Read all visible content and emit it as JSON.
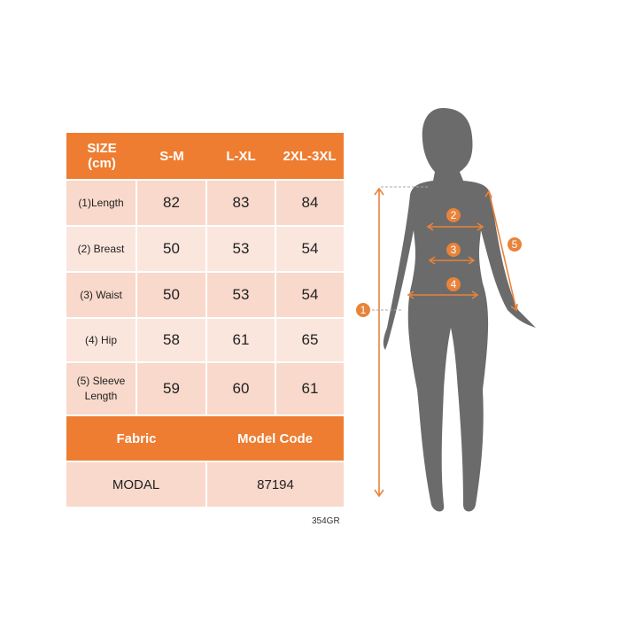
{
  "table": {
    "header": [
      "SIZE\n(cm)",
      "S-M",
      "L-XL",
      "2XL-3XL"
    ],
    "header_line1": "SIZE",
    "header_line2": "(cm)",
    "rows": [
      {
        "label": "(1)Length",
        "values": [
          "82",
          "83",
          "84"
        ]
      },
      {
        "label": "(2) Breast",
        "values": [
          "50",
          "53",
          "54"
        ]
      },
      {
        "label": "(3) Waist",
        "values": [
          "50",
          "53",
          "54"
        ]
      },
      {
        "label": "(4) Hip",
        "values": [
          "58",
          "61",
          "65"
        ]
      },
      {
        "label": "(5) Sleeve Length",
        "values": [
          "59",
          "60",
          "61"
        ]
      }
    ],
    "fabric_label": "Fabric",
    "model_code_label": "Model Code",
    "fabric_value": "MODAL",
    "model_code_value": "87194"
  },
  "product_code": "354GR",
  "figure": {
    "markers": [
      "1",
      "2",
      "3",
      "4",
      "5"
    ]
  },
  "colors": {
    "accent": "#ee7d31",
    "cell": "#f8d9cb",
    "silhouette": "#6b6b6b"
  }
}
